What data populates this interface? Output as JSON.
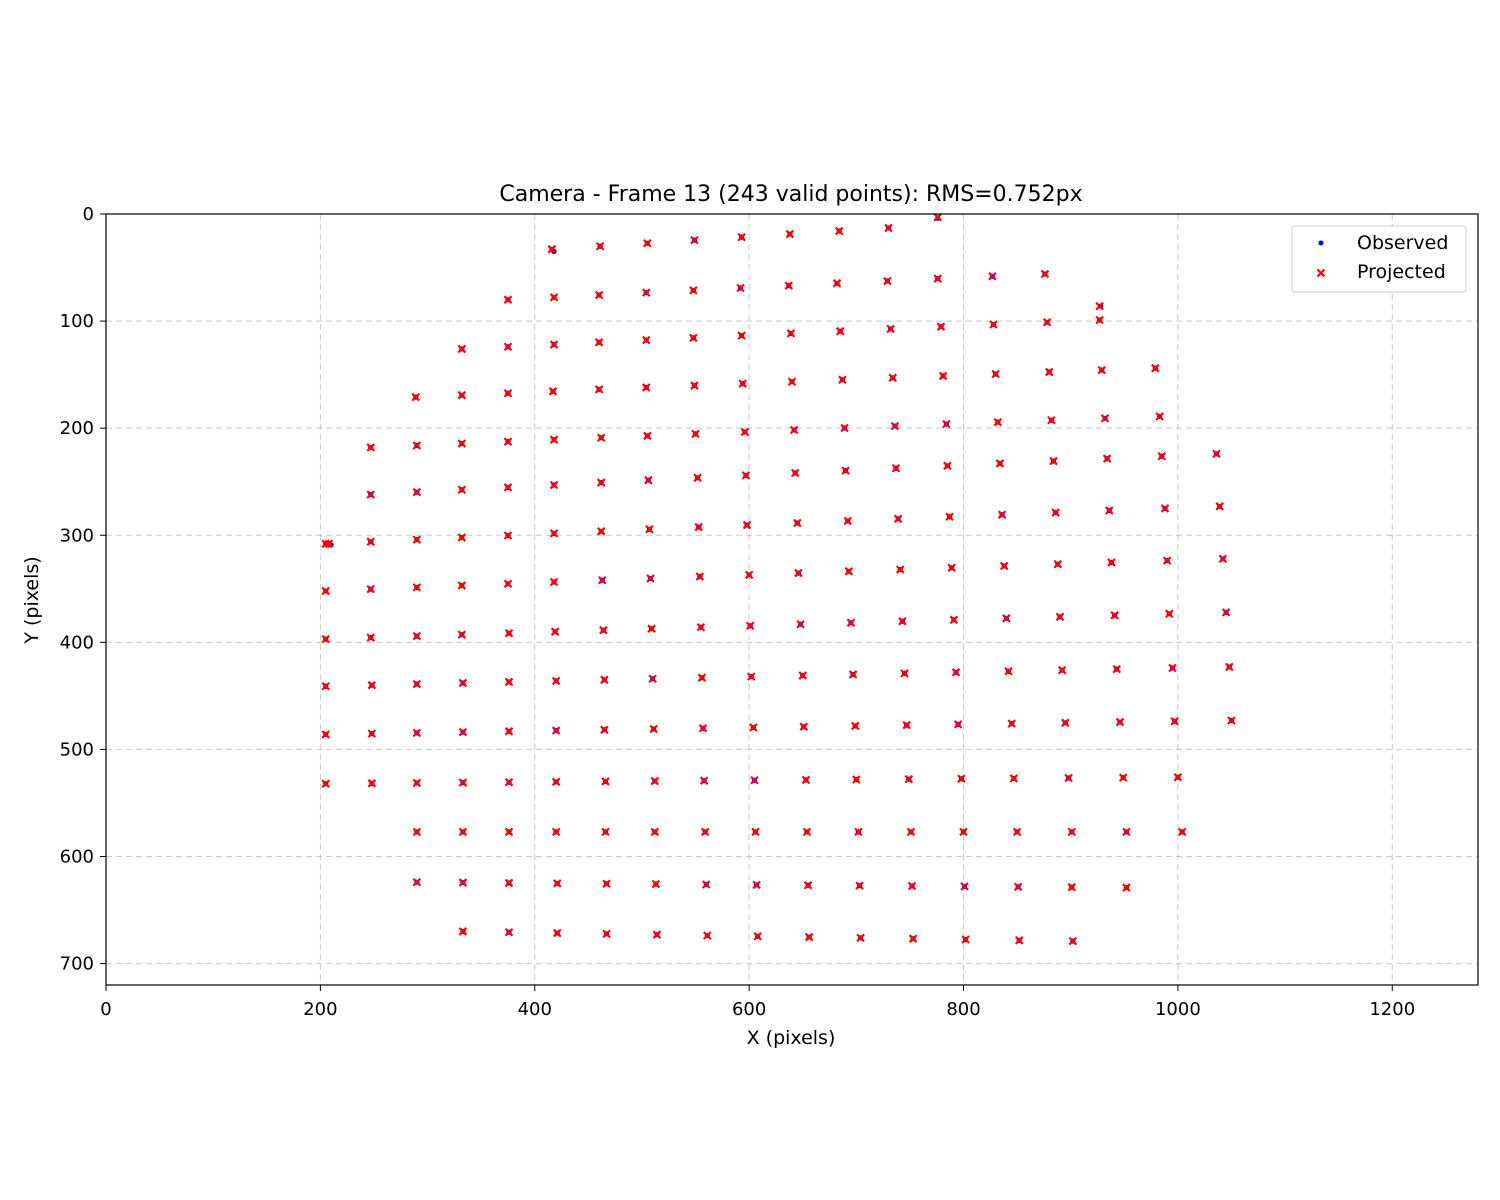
{
  "chart_data": {
    "type": "scatter",
    "title": "Camera - Frame 13 (243 valid points): RMS=0.752px",
    "xlabel": "X (pixels)",
    "ylabel": "Y (pixels)",
    "xlim": [
      0,
      1280
    ],
    "ylim": [
      720,
      0
    ],
    "y_inverted": true,
    "grid": true,
    "grid_style": "dashed",
    "legend_position": "top-right",
    "xticks": [
      0,
      200,
      400,
      600,
      800,
      1000,
      1200
    ],
    "yticks": [
      0,
      100,
      200,
      300,
      400,
      500,
      600,
      700
    ],
    "series": [
      {
        "name": "Observed",
        "marker": "dot",
        "color": "#0000ff",
        "grid_rows": [
          {
            "y0": 4,
            "y1": 4,
            "xs": [
              776
            ]
          },
          {
            "y0": 33,
            "y1": 13,
            "xs": [
              416,
              461,
              505,
              549,
              593,
              638,
              684,
              730
            ]
          },
          {
            "y0": 80,
            "y1": 56,
            "xs": [
              375,
              418,
              460,
              504,
              548,
              592,
              637,
              682,
              729,
              776,
              827,
              876
            ]
          },
          {
            "y0": 124,
            "y1": 99,
            "xs": [
              375,
              418,
              460,
              504,
              548,
              593,
              639,
              685,
              732,
              779,
              828,
              878,
              927
            ]
          },
          {
            "y0": 126,
            "y1": 126,
            "xs": [
              332
            ]
          },
          {
            "y0": 171,
            "y1": 144,
            "xs": [
              289,
              332,
              375,
              417,
              460,
              504,
              549,
              594,
              640,
              687,
              734,
              781,
              830,
              880,
              929,
              979
            ]
          },
          {
            "y0": 218,
            "y1": 189,
            "xs": [
              247,
              290,
              332,
              375,
              418,
              462,
              505,
              550,
              596,
              642,
              689,
              736,
              784,
              832,
              882,
              932,
              983
            ]
          },
          {
            "y0": 262,
            "y1": 224,
            "xs": [
              247,
              290,
              332,
              375,
              418,
              462,
              506,
              552,
              597,
              643,
              690,
              737,
              785,
              834,
              884,
              934,
              985,
              1036
            ]
          },
          {
            "y0": 308,
            "y1": 273,
            "xs": [
              205,
              247,
              290,
              332,
              375,
              418,
              462,
              507,
              553,
              598,
              645,
              692,
              739,
              787,
              836,
              886,
              936,
              988,
              1039
            ]
          },
          {
            "y0": 352,
            "y1": 322,
            "xs": [
              205,
              247,
              290,
              332,
              375,
              418,
              463,
              508,
              554,
              600,
              646,
              693,
              741,
              789,
              838,
              888,
              938,
              990,
              1042
            ]
          },
          {
            "y0": 397,
            "y1": 372,
            "xs": [
              205,
              247,
              290,
              332,
              376,
              419,
              464,
              509,
              555,
              601,
              648,
              695,
              743,
              791,
              840,
              890,
              941,
              992,
              1045
            ]
          },
          {
            "y0": 441,
            "y1": 423,
            "xs": [
              205,
              248,
              290,
              333,
              376,
              420,
              465,
              510,
              556,
              602,
              650,
              697,
              745,
              793,
              842,
              892,
              943,
              995,
              1048
            ]
          },
          {
            "y0": 486,
            "y1": 473,
            "xs": [
              205,
              248,
              290,
              333,
              376,
              420,
              465,
              511,
              557,
              604,
              651,
              699,
              747,
              795,
              845,
              895,
              946,
              997,
              1050
            ]
          },
          {
            "y0": 532,
            "y1": 526,
            "xs": [
              205,
              248,
              290,
              333,
              376,
              420,
              466,
              512,
              558,
              605,
              653,
              700,
              749,
              798,
              847,
              898,
              949,
              1000
            ]
          },
          {
            "y0": 577,
            "y1": 577,
            "xs": [
              290,
              333,
              376,
              420,
              466,
              512,
              559,
              606,
              654,
              702,
              751,
              800,
              850,
              901,
              952,
              1004
            ]
          },
          {
            "y0": 624,
            "y1": 629,
            "xs": [
              290,
              333,
              376,
              421,
              467,
              513,
              560,
              607,
              655,
              703,
              752,
              801,
              851,
              901,
              952
            ]
          },
          {
            "y0": 670,
            "y1": 679,
            "xs": [
              333,
              376,
              421,
              467,
              514,
              561,
              608,
              656,
              704,
              753,
              802,
              852,
              902
            ]
          }
        ],
        "extra_points": [
          [
            418,
            35
          ],
          [
            210,
            309
          ],
          [
            928,
            86
          ]
        ]
      },
      {
        "name": "Projected",
        "marker": "x",
        "color": "#ff0000",
        "grid_rows": [
          {
            "y0": 3,
            "y1": 3,
            "xs": [
              776
            ]
          },
          {
            "y0": 33,
            "y1": 13,
            "xs": [
              416,
              461,
              505,
              549,
              593,
              638,
              684,
              730
            ]
          },
          {
            "y0": 80,
            "y1": 56,
            "xs": [
              375,
              418,
              460,
              504,
              548,
              592,
              637,
              682,
              729,
              776,
              827,
              876
            ]
          },
          {
            "y0": 124,
            "y1": 99,
            "xs": [
              375,
              418,
              460,
              504,
              548,
              593,
              639,
              685,
              732,
              779,
              828,
              878,
              927
            ]
          },
          {
            "y0": 126,
            "y1": 126,
            "xs": [
              332
            ]
          },
          {
            "y0": 171,
            "y1": 144,
            "xs": [
              289,
              332,
              375,
              417,
              460,
              504,
              549,
              594,
              640,
              687,
              734,
              781,
              830,
              880,
              929,
              979
            ]
          },
          {
            "y0": 218,
            "y1": 189,
            "xs": [
              247,
              290,
              332,
              375,
              418,
              462,
              505,
              550,
              596,
              642,
              689,
              736,
              784,
              832,
              882,
              932,
              983
            ]
          },
          {
            "y0": 262,
            "y1": 224,
            "xs": [
              247,
              290,
              332,
              375,
              418,
              462,
              506,
              552,
              597,
              643,
              690,
              737,
              785,
              834,
              884,
              934,
              985,
              1036
            ]
          },
          {
            "y0": 308,
            "y1": 273,
            "xs": [
              205,
              247,
              290,
              332,
              375,
              418,
              462,
              507,
              553,
              598,
              645,
              692,
              739,
              787,
              836,
              886,
              936,
              988,
              1039
            ]
          },
          {
            "y0": 352,
            "y1": 322,
            "xs": [
              205,
              247,
              290,
              332,
              375,
              418,
              463,
              508,
              554,
              600,
              646,
              693,
              741,
              789,
              838,
              888,
              938,
              990,
              1042
            ]
          },
          {
            "y0": 397,
            "y1": 372,
            "xs": [
              205,
              247,
              290,
              332,
              376,
              419,
              464,
              509,
              555,
              601,
              648,
              695,
              743,
              791,
              840,
              890,
              941,
              992,
              1045
            ]
          },
          {
            "y0": 441,
            "y1": 423,
            "xs": [
              205,
              248,
              290,
              333,
              376,
              420,
              465,
              510,
              556,
              602,
              650,
              697,
              745,
              793,
              842,
              892,
              943,
              995,
              1048
            ]
          },
          {
            "y0": 486,
            "y1": 473,
            "xs": [
              205,
              248,
              290,
              333,
              376,
              420,
              465,
              511,
              557,
              604,
              651,
              699,
              747,
              795,
              845,
              895,
              946,
              997,
              1050
            ]
          },
          {
            "y0": 532,
            "y1": 526,
            "xs": [
              205,
              248,
              290,
              333,
              376,
              420,
              466,
              512,
              558,
              605,
              653,
              700,
              749,
              798,
              847,
              898,
              949,
              1000
            ]
          },
          {
            "y0": 577,
            "y1": 577,
            "xs": [
              290,
              333,
              376,
              420,
              466,
              512,
              559,
              606,
              654,
              702,
              751,
              800,
              850,
              901,
              952,
              1004
            ]
          },
          {
            "y0": 624,
            "y1": 629,
            "xs": [
              290,
              333,
              376,
              421,
              467,
              513,
              560,
              607,
              655,
              703,
              752,
              801,
              851,
              901,
              952
            ]
          },
          {
            "y0": 670,
            "y1": 679,
            "xs": [
              333,
              376,
              421,
              467,
              514,
              561,
              608,
              656,
              704,
              753,
              802,
              852,
              902
            ]
          }
        ],
        "extra_points": [
          [
            416,
            33
          ],
          [
            208,
            308
          ],
          [
            927,
            86
          ]
        ]
      }
    ]
  }
}
